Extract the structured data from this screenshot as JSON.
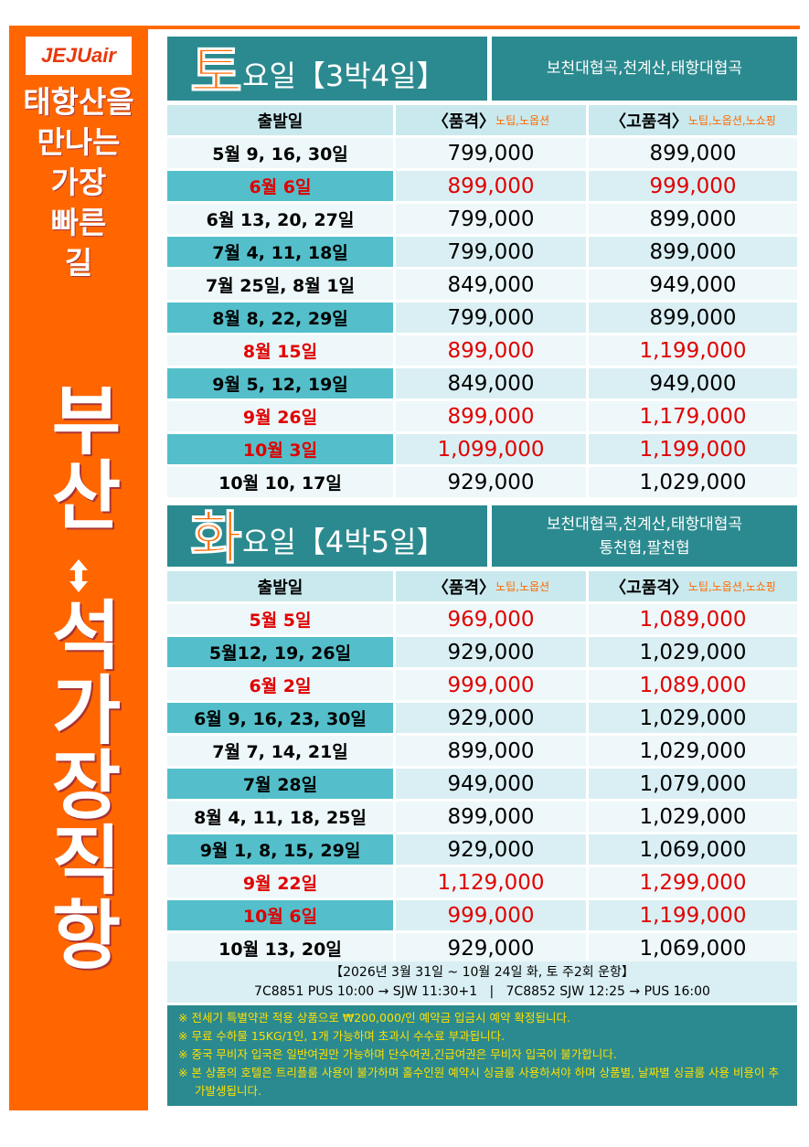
{
  "logo": "JEJUair",
  "tagline": [
    "태항산을",
    "만나는",
    "가장",
    "빠른",
    "길"
  ],
  "route": [
    "부산",
    "석가장직항"
  ],
  "sections": [
    {
      "day": "토",
      "label": "요일【3박4일】",
      "places": [
        "보천대협곡,천계산,태항대협곡"
      ],
      "headers": [
        {
          "text": "출발일"
        },
        {
          "text": "〈품격〉",
          "note": "노팁,노옵션"
        },
        {
          "text": "〈고품격〉",
          "note": "노팁,노옵션,노쇼핑"
        }
      ],
      "rows": [
        {
          "date": "5월 9, 16, 30일",
          "price": "799,000",
          "premium": "899,000",
          "highlight": false
        },
        {
          "date": "6월 6일",
          "price": "899,000",
          "premium": "999,000",
          "highlight": true
        },
        {
          "date": "6월 13, 20, 27일",
          "price": "799,000",
          "premium": "899,000",
          "highlight": false
        },
        {
          "date": "7월 4, 11, 18일",
          "price": "799,000",
          "premium": "899,000",
          "highlight": false
        },
        {
          "date": "7월 25일, 8월 1일",
          "price": "849,000",
          "premium": "949,000",
          "highlight": false
        },
        {
          "date": "8월 8, 22, 29일",
          "price": "799,000",
          "premium": "899,000",
          "highlight": false
        },
        {
          "date": "8월 15일",
          "price": "899,000",
          "premium": "1,199,000",
          "highlight": true
        },
        {
          "date": "9월 5, 12, 19일",
          "price": "849,000",
          "premium": "949,000",
          "highlight": false
        },
        {
          "date": "9월 26일",
          "price": "899,000",
          "premium": "1,179,000",
          "highlight": true
        },
        {
          "date": "10월 3일",
          "price": "1,099,000",
          "premium": "1,199,000",
          "highlight": true
        },
        {
          "date": "10월 10, 17일",
          "price": "929,000",
          "premium": "1,029,000",
          "highlight": false
        }
      ]
    },
    {
      "day": "화",
      "label": "요일【4박5일】",
      "places": [
        "보천대협곡,천계산,태항대협곡",
        "통천협,팔천협"
      ],
      "headers": [
        {
          "text": "출발일"
        },
        {
          "text": "〈품격〉",
          "note": "노팁,노옵션"
        },
        {
          "text": "〈고품격〉",
          "note": "노팁,노옵션,노쇼핑"
        }
      ],
      "rows": [
        {
          "date": "5월 5일",
          "price": "969,000",
          "premium": "1,089,000",
          "highlight": true
        },
        {
          "date": "5월12, 19, 26일",
          "price": "929,000",
          "premium": "1,029,000",
          "highlight": false
        },
        {
          "date": "6월 2일",
          "price": "999,000",
          "premium": "1,089,000",
          "highlight": true
        },
        {
          "date": "6월 9, 16, 23, 30일",
          "price": "929,000",
          "premium": "1,029,000",
          "highlight": false
        },
        {
          "date": "7월 7, 14, 21일",
          "price": "899,000",
          "premium": "1,029,000",
          "highlight": false
        },
        {
          "date": "7월 28일",
          "price": "949,000",
          "premium": "1,079,000",
          "highlight": false
        },
        {
          "date": "8월 4, 11, 18, 25일",
          "price": "899,000",
          "premium": "1,029,000",
          "highlight": false
        },
        {
          "date": "9월 1, 8, 15, 29일",
          "price": "929,000",
          "premium": "1,069,000",
          "highlight": false
        },
        {
          "date": "9월 22일",
          "price": "1,129,000",
          "premium": "1,299,000",
          "highlight": true
        },
        {
          "date": "10월 6일",
          "price": "999,000",
          "premium": "1,199,000",
          "highlight": true
        },
        {
          "date": "10월 13, 20일",
          "price": "929,000",
          "premium": "1,069,000",
          "highlight": false
        }
      ]
    }
  ],
  "schedule": "【2026년 3월 31일 ~ 10월 24일 화, 토 주2회 운항】",
  "flights": "7C8851 PUS 10:00 → SJW 11:30+1   |   7C8852 SJW 12:25 → PUS 16:00",
  "notes": [
    "※ 전세기 특별약관 적용 상품으로 ₩200,000/인 예약금 입금시 예약 확정됩니다.",
    "※ 무료 수하물 15KG/1인, 1개 가능하며 초과시 수수료 부과됩니다.",
    "※ 중국 무비자 입국은 일반여권만 가능하며 단수여권,긴급여권은 무비자 입국이 불가합니다.",
    "※ 본 상품의 호텔은 트리플룸 사용이 불가하며 홀수인원 예약시 싱글룸 사용하셔야 하며 상품별, 날짜별 싱글룸 사용 비용이 추가발생됩니다."
  ]
}
